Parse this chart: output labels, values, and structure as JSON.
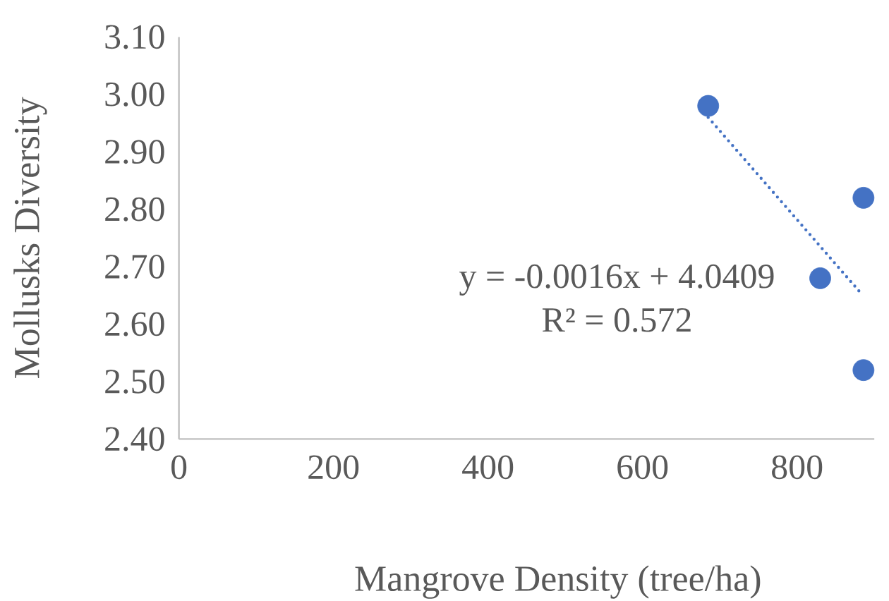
{
  "chart_data": {
    "type": "scatter",
    "xlabel": "Mangrove Density (tree/ha)",
    "ylabel": "Mollusks Diversity",
    "series": [
      {
        "color": "#4472c4",
        "marker": "circle",
        "x": [
          685,
          830,
          886,
          886
        ],
        "values": [
          2.98,
          2.68,
          2.82,
          2.52
        ]
      },
      {
        "type": "line",
        "color": "#4472c4",
        "line_style": "dotted",
        "marker": "none",
        "x": [
          685,
          882
        ],
        "values": [
          2.96,
          2.655
        ]
      }
    ],
    "annotations": [
      "y = -0.0016x + 4.0409",
      "R² = 0.572"
    ],
    "xlim": [
      0,
      900
    ],
    "ylim": [
      2.4,
      3.1
    ],
    "xticks": [
      0,
      200,
      400,
      600,
      800
    ],
    "yticks": [
      {
        "value": 2.4,
        "label": "2.40"
      },
      {
        "value": 2.5,
        "label": "2.50"
      },
      {
        "value": 2.6,
        "label": "2.60"
      },
      {
        "value": 2.7,
        "label": "2.70"
      },
      {
        "value": 2.8,
        "label": "2.80"
      },
      {
        "value": 2.9,
        "label": "2.90"
      },
      {
        "value": 3.0,
        "label": "3.00"
      },
      {
        "value": 3.1,
        "label": "3.10"
      }
    ],
    "grid": false
  }
}
